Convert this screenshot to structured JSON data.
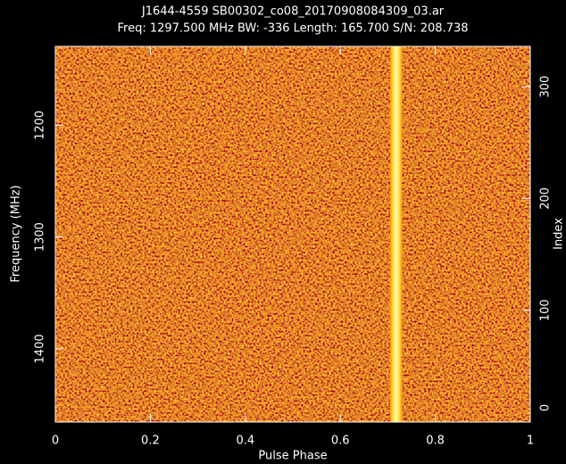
{
  "chart_data": {
    "type": "heatmap",
    "title": "J1644-4559 SB00302_co08_20170908084309_03.ar",
    "subtitle": "Freq: 1297.500 MHz BW: -336 Length: 165.700 S/N: 208.738",
    "x_label": "Pulse Phase",
    "y_label": "Frequency (MHz)",
    "y2_label": "Index",
    "xlim": [
      0,
      1
    ],
    "xticks": [
      0,
      0.2,
      0.4,
      0.6,
      0.8,
      1
    ],
    "ylim": [
      1465.5,
      1129.5
    ],
    "yticks": [
      1200,
      1300,
      1400
    ],
    "y2lim": [
      0,
      336
    ],
    "y2ticks": [
      0,
      100,
      200,
      300
    ],
    "pulse_phase": [
      0.705,
      0.73
    ],
    "color": "#ffff90"
  }
}
